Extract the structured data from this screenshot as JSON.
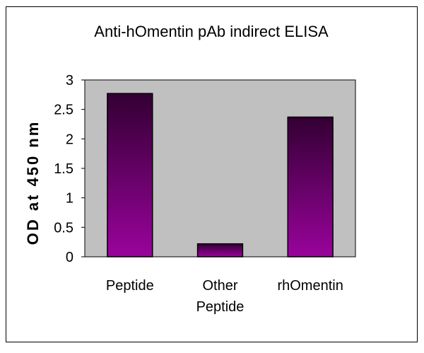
{
  "chart_data": {
    "type": "bar",
    "title": "Anti-hOmentin pAb indirect ELISA",
    "xlabel": "",
    "ylabel": "OD at 450 nm",
    "categories": [
      [
        "Peptide"
      ],
      [
        "Other",
        "Peptide"
      ],
      [
        "rhOmentin"
      ]
    ],
    "values": [
      2.77,
      0.22,
      2.37
    ],
    "ylim": [
      0,
      3
    ],
    "yticks": [
      "0",
      "0.5",
      "1",
      "1.5",
      "2",
      "2.5",
      "3"
    ],
    "grid": false,
    "legend": "none",
    "colors": {
      "plot_background": "#c0c0c0",
      "bar_top": "#330033",
      "bar_bottom": "#99039b",
      "bar_border": "#000000",
      "chart_border": "#000000"
    }
  }
}
